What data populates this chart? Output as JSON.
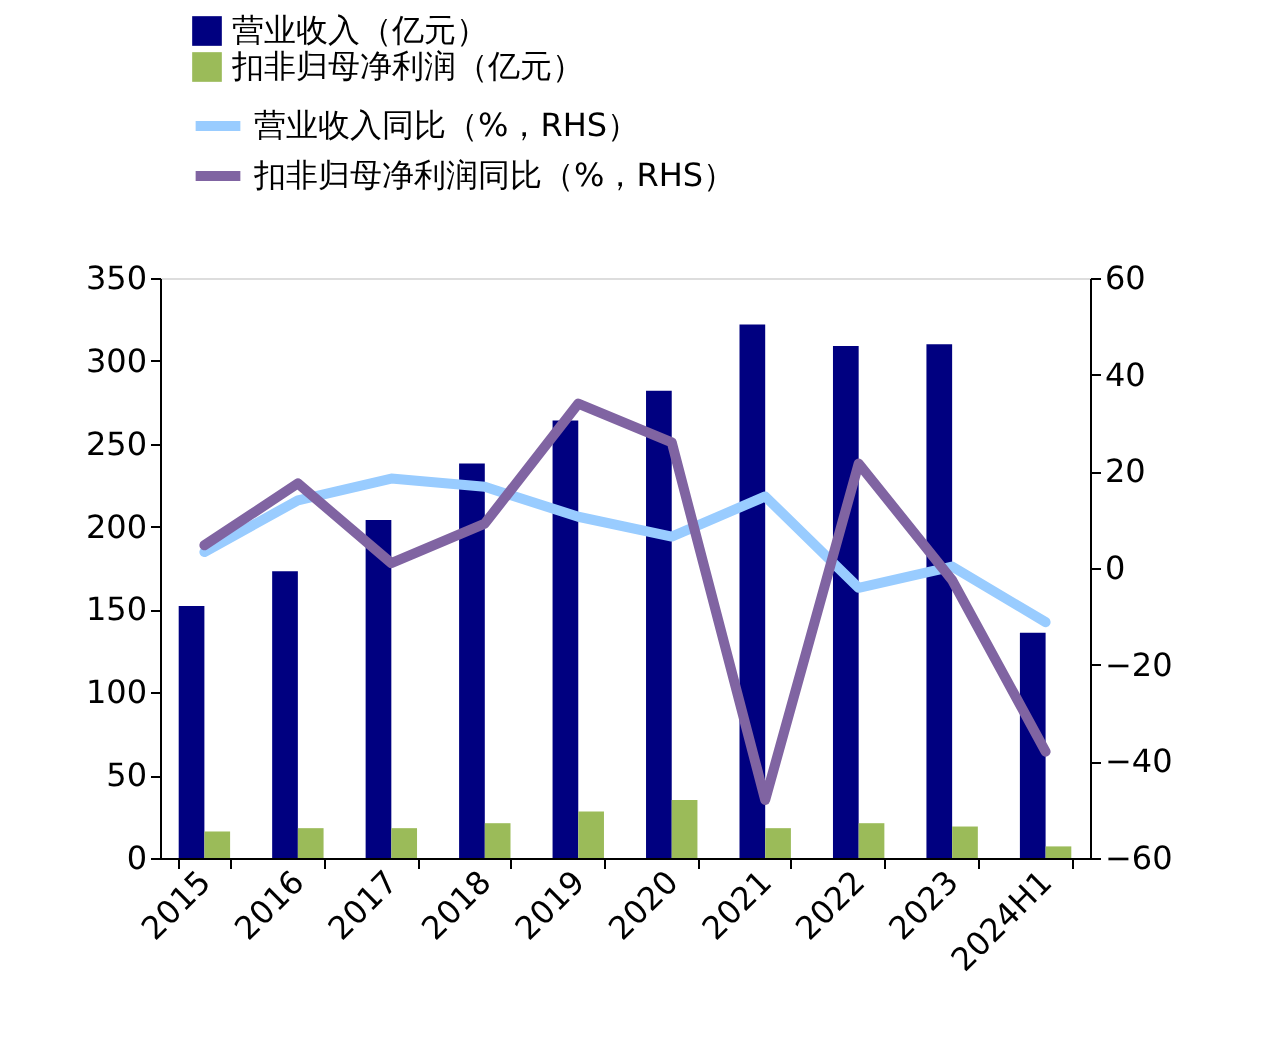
{
  "chart_data": {
    "type": "bar",
    "categories": [
      "2015",
      "2016",
      "2017",
      "2018",
      "2019",
      "2020",
      "2021",
      "2022",
      "2023",
      "2024H1"
    ],
    "series": [
      {
        "name": "营业收入（亿元）",
        "color": "#000080",
        "values": [
          152,
          173,
          204,
          238,
          264,
          282,
          322,
          309,
          310,
          136
        ]
      },
      {
        "name": "扣非归母净利润（亿元）",
        "color": "#9bbb59",
        "values": [
          16,
          18,
          18,
          21,
          28,
          35,
          18,
          21,
          19,
          7
        ]
      },
      {
        "name": "营业收入同比（%，RHS）",
        "type": "line",
        "axis": "y2",
        "color": "#99ccff",
        "values": [
          3.3,
          14,
          18.5,
          16.8,
          10.6,
          6.5,
          14.8,
          -4.1,
          0.3,
          -11.2
        ]
      },
      {
        "name": "扣非归母净利润同比（%，RHS）",
        "type": "line",
        "axis": "y2",
        "color": "#8064a2",
        "values": [
          4.7,
          17.5,
          1,
          9.2,
          34,
          26,
          -48,
          21.6,
          -2.5,
          -38
        ]
      }
    ],
    "ylim": [
      0,
      350
    ],
    "yticks": [
      0,
      50,
      100,
      150,
      200,
      250,
      300,
      350
    ],
    "y2lim": [
      -60,
      60
    ],
    "y2ticks": [
      -60,
      -40,
      -20,
      0,
      20,
      40,
      60
    ],
    "legend": "top",
    "grid": false
  }
}
